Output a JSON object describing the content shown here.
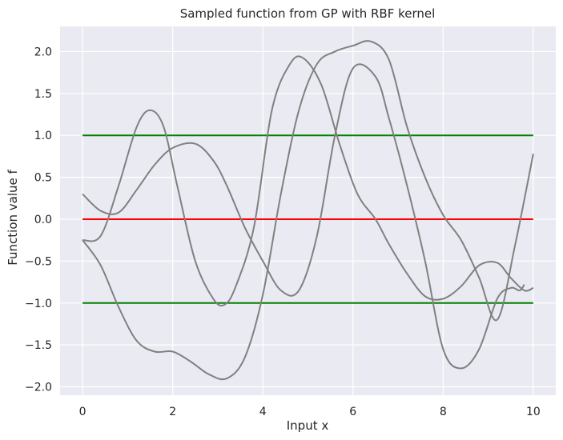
{
  "chart_data": {
    "type": "line",
    "title": "Sampled function from GP with RBF kernel",
    "xlabel": "Input x",
    "ylabel": "Function value f",
    "xlim": [
      -0.5,
      10.5
    ],
    "ylim": [
      -2.1,
      2.3
    ],
    "xticks": [
      0,
      2,
      4,
      6,
      8,
      10
    ],
    "xtick_labels": [
      "0",
      "2",
      "4",
      "6",
      "8",
      "10"
    ],
    "yticks": [
      -2.0,
      -1.5,
      -1.0,
      -0.5,
      0.0,
      0.5,
      1.0,
      1.5,
      2.0
    ],
    "ytick_labels": [
      "−2.0",
      "−1.5",
      "−1.0",
      "−0.5",
      "0.0",
      "0.5",
      "1.0",
      "1.5",
      "2.0"
    ],
    "grid": true,
    "background": "#eaeaf2",
    "grid_color": "#ffffff",
    "series": [
      {
        "color": "#808080",
        "x": [
          0,
          0.4,
          0.8,
          1.2,
          1.5,
          1.8,
          2.1,
          2.5,
          2.9,
          3.15,
          3.4,
          3.8,
          4.2,
          4.6,
          4.9,
          5.3,
          5.7,
          6.1,
          6.5,
          6.8,
          7.2,
          7.6,
          8.0,
          8.4,
          8.8,
          9.2,
          9.5,
          9.8,
          10.0
        ],
        "y": [
          -0.25,
          -0.2,
          0.4,
          1.1,
          1.3,
          1.1,
          0.4,
          -0.5,
          -0.95,
          -1.02,
          -0.8,
          -0.1,
          1.3,
          1.85,
          1.92,
          1.6,
          0.9,
          0.3,
          0.0,
          -0.3,
          -0.65,
          -0.92,
          -0.95,
          -0.8,
          -0.55,
          -0.52,
          -0.7,
          -0.85,
          -0.82
        ]
      },
      {
        "color": "#808080",
        "x": [
          0,
          0.4,
          0.8,
          1.2,
          1.6,
          2.0,
          2.5,
          2.9,
          3.2,
          3.6,
          4.0,
          4.4,
          4.8,
          5.2,
          5.6,
          6.0,
          6.5,
          6.8,
          7.2,
          7.6,
          8.0,
          8.4,
          8.8,
          9.2,
          9.5,
          9.7,
          9.8
        ],
        "y": [
          0.3,
          0.1,
          0.08,
          0.35,
          0.65,
          0.85,
          0.9,
          0.7,
          0.4,
          -0.1,
          -0.5,
          -0.85,
          -0.85,
          -0.2,
          1.0,
          1.8,
          1.7,
          1.2,
          0.4,
          -0.5,
          -1.55,
          -1.78,
          -1.55,
          -0.95,
          -0.82,
          -0.85,
          -0.78
        ]
      },
      {
        "color": "#808080",
        "x": [
          0,
          0.4,
          0.8,
          1.2,
          1.6,
          2.0,
          2.4,
          2.8,
          3.2,
          3.6,
          4.0,
          4.4,
          4.8,
          5.2,
          5.6,
          6.0,
          6.4,
          6.8,
          7.2,
          7.6,
          8.0,
          8.4,
          8.8,
          9.2,
          9.6,
          10.0
        ],
        "y": [
          -0.25,
          -0.55,
          -1.05,
          -1.45,
          -1.58,
          -1.58,
          -1.7,
          -1.85,
          -1.9,
          -1.65,
          -0.9,
          0.3,
          1.3,
          1.85,
          2.0,
          2.07,
          2.12,
          1.9,
          1.1,
          0.5,
          0.05,
          -0.25,
          -0.7,
          -1.2,
          -0.3,
          0.78
        ]
      }
    ],
    "hlines": [
      {
        "y": 1.0,
        "color": "#008000",
        "xmin": 0,
        "xmax": 10
      },
      {
        "y": 0.0,
        "color": "#ff0000",
        "xmin": 0,
        "xmax": 10
      },
      {
        "y": -1.0,
        "color": "#008000",
        "xmin": 0,
        "xmax": 10
      }
    ]
  }
}
